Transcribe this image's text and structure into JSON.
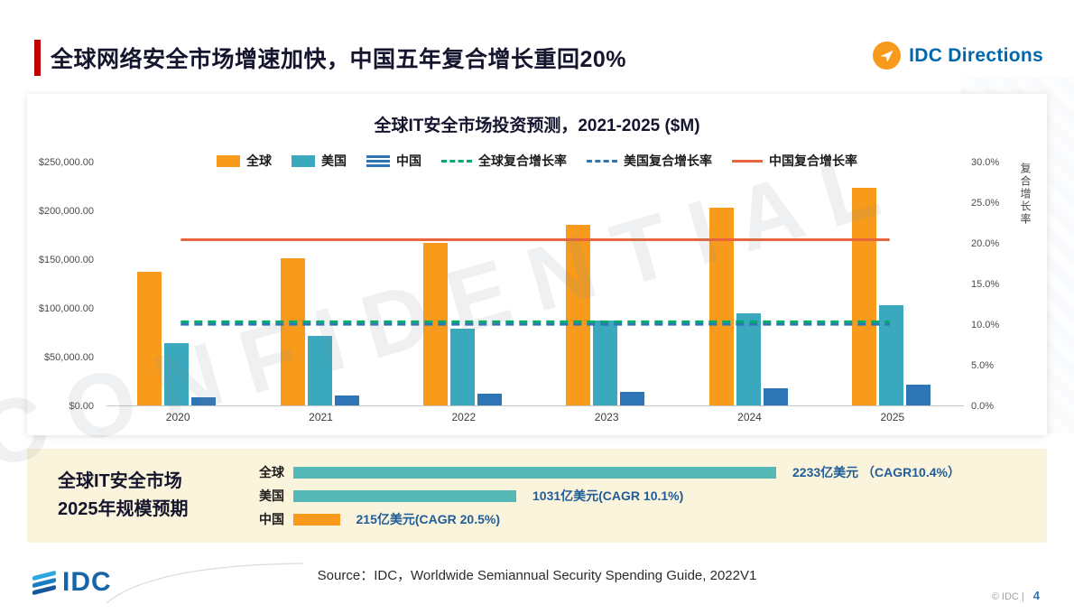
{
  "header": {
    "title": "全球网络安全市场增速加快，中国五年复合增长重回20%",
    "brand": "IDC Directions"
  },
  "watermark": "CONFIDENTIAL",
  "chart_data": [
    {
      "type": "bar",
      "title": "全球IT安全市场投资预测，2021-2025 ($M)",
      "categories": [
        "2020",
        "2021",
        "2022",
        "2023",
        "2024",
        "2025"
      ],
      "series": [
        {
          "name": "全球",
          "kind": "bar",
          "color": "#F89B1C",
          "values": [
            137000,
            151000,
            167000,
            185000,
            202500,
            223300
          ]
        },
        {
          "name": "美国",
          "kind": "bar",
          "color": "#3AA9BD",
          "values": [
            64000,
            71000,
            79000,
            87000,
            94500,
            103100
          ]
        },
        {
          "name": "中国",
          "kind": "bar",
          "color": "#2E75B6",
          "swatch": "stripes",
          "values": [
            8500,
            10300,
            12300,
            14300,
            17200,
            21500
          ]
        },
        {
          "name": "全球复合增长率",
          "kind": "dashed-line",
          "color": "#00A96C",
          "values": [
            10.4,
            10.4,
            10.4,
            10.4,
            10.4,
            10.4
          ]
        },
        {
          "name": "美国复合增长率",
          "kind": "dashed-line",
          "color": "#2E75B6",
          "values": [
            10.1,
            10.1,
            10.1,
            10.1,
            10.1,
            10.1
          ]
        },
        {
          "name": "中国复合增长率",
          "kind": "line",
          "color": "#E8643C",
          "values": [
            20.5,
            20.5,
            20.5,
            20.5,
            20.5,
            20.5
          ]
        }
      ],
      "ylabel_right": "复合增长率",
      "y_left": {
        "min": 0,
        "max": 250000,
        "ticks": [
          "$250,000.00",
          "$200,000.00",
          "$150,000.00",
          "$100,000.00",
          "$50,000.00",
          "$0.00"
        ]
      },
      "y_right": {
        "min": 0,
        "max": 30,
        "ticks": [
          "30.0%",
          "25.0%",
          "20.0%",
          "15.0%",
          "10.0%",
          "5.0%",
          "0.0%"
        ]
      },
      "legend_position": "top",
      "grid": false
    },
    {
      "type": "bar",
      "orientation": "horizontal",
      "title": "全球IT安全市场2025年规模预期",
      "categories": [
        "全球",
        "美国",
        "中国"
      ],
      "values": [
        2233,
        1031,
        215
      ],
      "labels": [
        "2233亿美元 （CAGR10.4%）",
        "1031亿美元(CAGR 10.1%)",
        "215亿美元(CAGR 20.5%)"
      ],
      "colors": [
        "#54B8B6",
        "#54B8B6",
        "#F89B1C"
      ],
      "unit": "亿美元"
    }
  ],
  "summary": {
    "heading_line1": "全球IT安全市场",
    "heading_line2": "2025年规模预期"
  },
  "footer": {
    "source": "Source：IDC，Worldwide Semiannual Security Spending Guide, 2022V1",
    "logo": "IDC",
    "copyright": "© IDC |",
    "page": "4"
  },
  "colors": {
    "accent_red": "#C00000",
    "brand_blue": "#0067AC",
    "brand_orange": "#F89B1C",
    "summary_band": "#FBF4DC",
    "summary_text_blue": "#1F5C99"
  }
}
